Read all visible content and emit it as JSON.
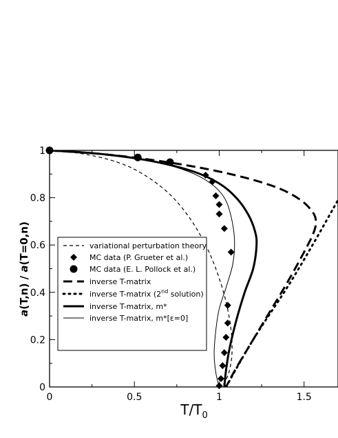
{
  "chart_data": {
    "type": "line",
    "xlabel": "T/T0",
    "ylabel": "a(T,n) / a(T=0,n)",
    "xlim": [
      0,
      1.7
    ],
    "ylim": [
      0,
      1.0
    ],
    "x_ticks": [
      "0",
      "0.5",
      "1",
      "1.5"
    ],
    "y_ticks": [
      "0",
      "0.2",
      "0.4",
      "0.6",
      "0.8",
      "1"
    ],
    "legend_position": "lower-left",
    "series": [
      {
        "name": "variational perturbation theory",
        "style": "dashed-thin",
        "x": [
          0,
          0.2,
          0.4,
          0.55,
          0.7,
          0.82,
          0.92,
          0.99,
          1.04,
          1.07,
          1.075,
          1.06,
          1.04,
          1.015
        ],
        "y": [
          1.0,
          0.985,
          0.95,
          0.9,
          0.82,
          0.72,
          0.6,
          0.48,
          0.36,
          0.24,
          0.14,
          0.07,
          0.03,
          0.0
        ]
      },
      {
        "name": "MC data (P. Grueter et al.)",
        "style": "diamond-markers",
        "x": [
          0.92,
          0.96,
          0.98,
          1.0,
          1.0,
          1.03,
          1.07,
          1.05,
          1.05,
          1.04,
          1.03,
          1.02,
          1.01,
          1.0
        ],
        "y": [
          0.895,
          0.868,
          0.808,
          0.771,
          0.731,
          0.67,
          0.57,
          0.345,
          0.27,
          0.21,
          0.145,
          0.09,
          0.035,
          0.005
        ]
      },
      {
        "name": "MC data (E. L. Pollock et al.)",
        "style": "circle-markers",
        "x": [
          0,
          0.52,
          0.71
        ],
        "y": [
          1.0,
          0.97,
          0.95
        ]
      },
      {
        "name": "inverse T-matrix",
        "style": "dashed-thick",
        "x": [
          0,
          0.3,
          0.6,
          0.9,
          1.15,
          1.35,
          1.48,
          1.55,
          1.57,
          1.555,
          1.5,
          1.4,
          1.3,
          1.2,
          1.1,
          1.04
        ],
        "y": [
          1.0,
          0.985,
          0.96,
          0.925,
          0.885,
          0.84,
          0.79,
          0.74,
          0.7,
          0.65,
          0.57,
          0.44,
          0.32,
          0.2,
          0.08,
          0.0
        ]
      },
      {
        "name": "inverse T-matrix (2nd solution)",
        "style": "dotted-thick",
        "x": [
          1.04,
          1.2,
          1.4,
          1.55,
          1.7
        ],
        "y": [
          0.0,
          0.2,
          0.42,
          0.6,
          0.79
        ]
      },
      {
        "name": "inverse T-matrix, m*",
        "style": "solid-thick",
        "x": [
          0,
          0.3,
          0.6,
          0.85,
          1.0,
          1.1,
          1.17,
          1.21,
          1.22,
          1.2,
          1.15,
          1.1,
          1.06,
          1.04,
          1.03
        ],
        "y": [
          1.0,
          0.985,
          0.955,
          0.91,
          0.86,
          0.8,
          0.73,
          0.66,
          0.6,
          0.5,
          0.4,
          0.28,
          0.16,
          0.07,
          0.0
        ]
      },
      {
        "name": "inverse T-matrix, m*[ε=0]",
        "style": "solid-thin",
        "x": [
          0,
          0.3,
          0.6,
          0.82,
          0.95,
          1.03,
          1.07,
          1.09,
          1.08,
          1.04,
          1.0,
          0.98,
          0.97,
          0.98,
          1.0
        ],
        "y": [
          1.0,
          0.985,
          0.955,
          0.91,
          0.86,
          0.8,
          0.72,
          0.62,
          0.52,
          0.42,
          0.33,
          0.24,
          0.14,
          0.06,
          0.0
        ]
      }
    ],
    "legend": [
      "variational perturbation theory",
      "MC data (P. Grueter et al.)",
      "MC data (E. L. Pollock et al.)",
      "inverse T-matrix",
      "inverse T-matrix (2",
      "nd",
      " solution)",
      "inverse T-matrix, m*",
      "inverse T-matrix, m*[ε=0]"
    ]
  }
}
